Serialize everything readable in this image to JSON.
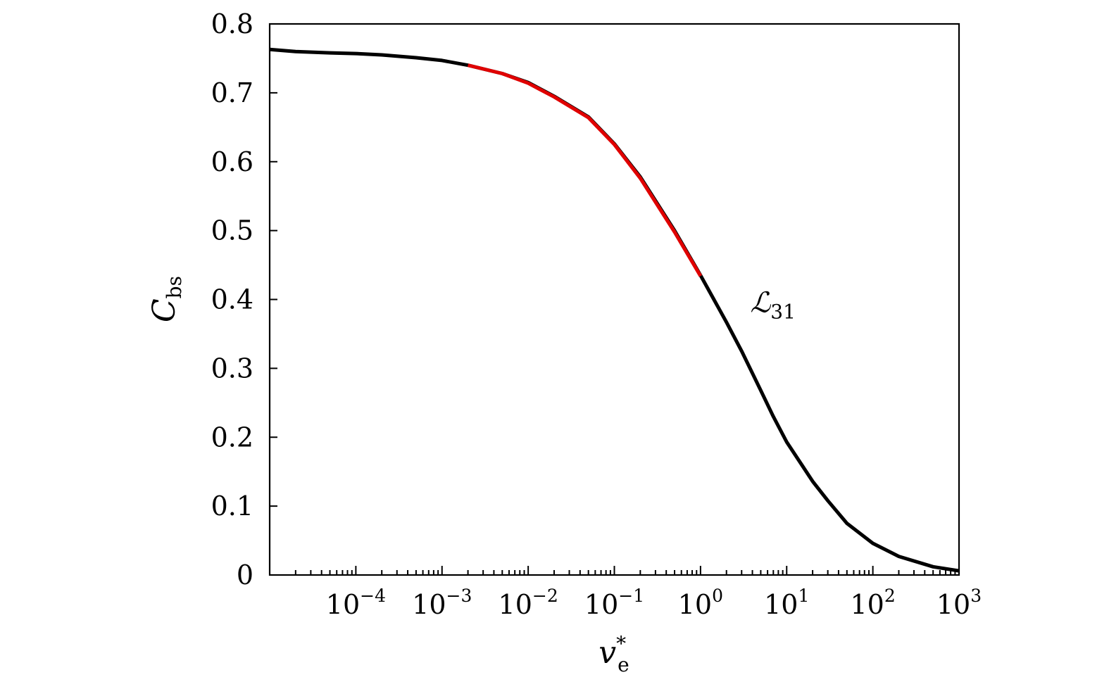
{
  "chart_data": {
    "type": "line",
    "xscale": "log",
    "xlim": [
      1e-05,
      1000
    ],
    "ylim": [
      0,
      0.8
    ],
    "grid": false,
    "legend": "none",
    "xlabel": {
      "base": "v",
      "sub": "e",
      "sup": "*"
    },
    "ylabel": {
      "base": "C",
      "sub": "bs"
    },
    "y_ticks": [
      {
        "value": 0,
        "label": "0"
      },
      {
        "value": 0.1,
        "label": "0.1"
      },
      {
        "value": 0.2,
        "label": "0.2"
      },
      {
        "value": 0.3,
        "label": "0.3"
      },
      {
        "value": 0.4,
        "label": "0.4"
      },
      {
        "value": 0.5,
        "label": "0.5"
      },
      {
        "value": 0.6,
        "label": "0.6"
      },
      {
        "value": 0.7,
        "label": "0.7"
      },
      {
        "value": 0.8,
        "label": "0.8"
      }
    ],
    "x_ticks": [
      {
        "value": 0.0001,
        "base": "10",
        "exp": "−4"
      },
      {
        "value": 0.001,
        "base": "10",
        "exp": "−3"
      },
      {
        "value": 0.01,
        "base": "10",
        "exp": "−2"
      },
      {
        "value": 0.1,
        "base": "10",
        "exp": "−1"
      },
      {
        "value": 1,
        "base": "10",
        "exp": "0"
      },
      {
        "value": 10,
        "base": "10",
        "exp": "1"
      },
      {
        "value": 100,
        "base": "10",
        "exp": "2"
      },
      {
        "value": 1000,
        "base": "10",
        "exp": "3"
      }
    ],
    "series": [
      {
        "color": "#000000",
        "x": [
          1e-05,
          2e-05,
          5e-05,
          0.0001,
          0.0002,
          0.0005,
          0.001,
          0.002,
          0.005,
          0.01,
          0.02,
          0.05,
          0.1,
          0.2,
          0.5,
          1,
          2,
          3,
          5,
          7,
          10,
          20,
          30,
          50,
          100,
          200,
          500,
          1000
        ],
        "y": [
          0.763,
          0.76,
          0.758,
          0.757,
          0.755,
          0.751,
          0.747,
          0.74,
          0.728,
          0.715,
          0.695,
          0.665,
          0.626,
          0.578,
          0.5,
          0.435,
          0.367,
          0.325,
          0.268,
          0.23,
          0.193,
          0.136,
          0.108,
          0.075,
          0.046,
          0.027,
          0.012,
          0.006
        ]
      },
      {
        "color": "#e00000",
        "x": [
          0.002,
          0.005,
          0.01,
          0.02,
          0.05,
          0.1,
          0.2,
          0.5,
          1
        ],
        "y": [
          0.74,
          0.728,
          0.714,
          0.694,
          0.664,
          0.625,
          0.576,
          0.498,
          0.434
        ]
      }
    ],
    "annotations": [
      {
        "base": "ℒ",
        "sub": "31",
        "x": 3.5,
        "y": 0.4
      }
    ]
  }
}
